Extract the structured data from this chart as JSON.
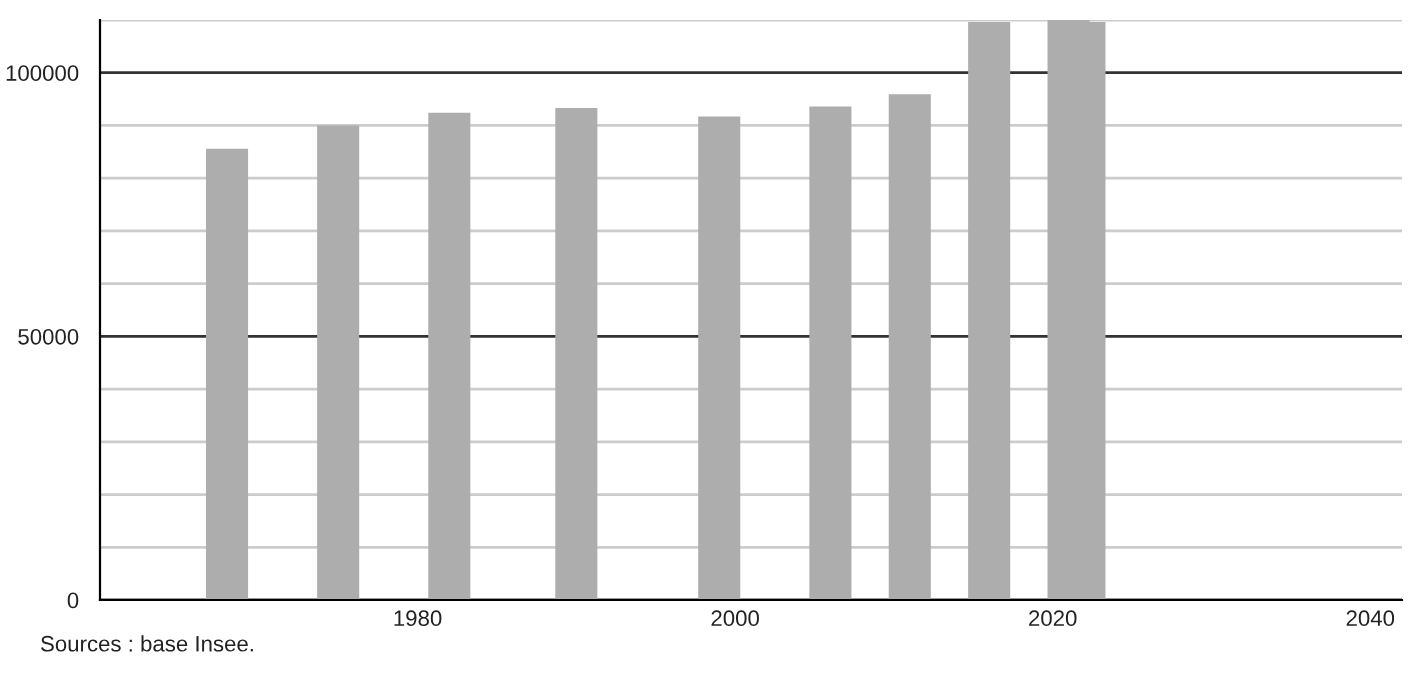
{
  "chart_data": {
    "type": "bar",
    "x": [
      1968,
      1975,
      1982,
      1990,
      1999,
      2006,
      2011,
      2016,
      2021,
      2022
    ],
    "values": [
      85600,
      90000,
      92400,
      93300,
      91700,
      93600,
      95900,
      109600,
      110000,
      109600
    ],
    "color": "#adadad",
    "xlim": [
      1960,
      2042
    ],
    "xticks": [
      1980,
      2000,
      2020,
      2040
    ],
    "ylim": [
      0,
      110000
    ],
    "yticks": [
      0,
      {
        "value": 10000,
        "label": null
      },
      {
        "value": 20000,
        "label": null
      },
      {
        "value": 30000,
        "label": null
      },
      {
        "value": 40000,
        "label": null
      },
      50000,
      {
        "value": 60000,
        "label": null
      },
      {
        "value": 70000,
        "label": null
      },
      {
        "value": 80000,
        "label": null
      },
      {
        "value": 90000,
        "label": null
      },
      100000,
      {
        "value": 110000,
        "label": null
      }
    ],
    "grid": "y",
    "annotations": [
      "Sources : base Insee."
    ]
  }
}
